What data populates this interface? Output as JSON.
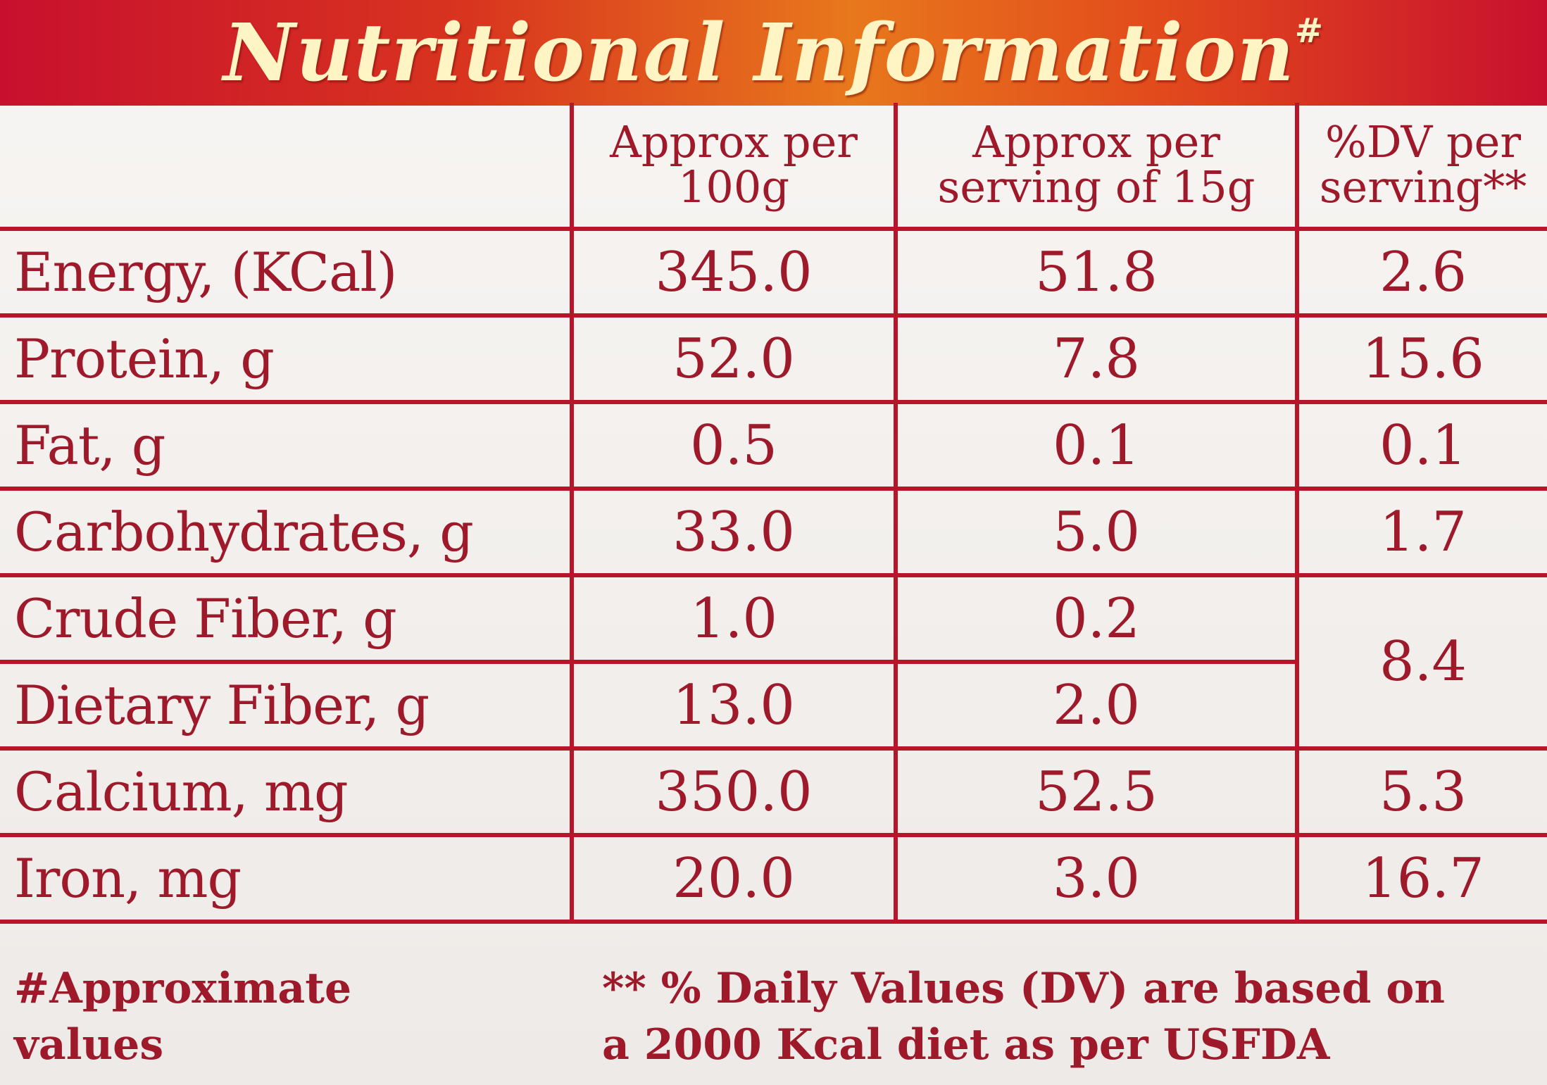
{
  "title": "Nutritional Information",
  "title_mark": "#",
  "colors": {
    "accent_red": "#b8142a",
    "text_red": "#9e1a2b",
    "banner_text": "#fff4c4"
  },
  "table": {
    "headers": [
      "",
      "Approx per 100g",
      "Approx per serving of 15g",
      "%DV per serving**"
    ],
    "rows": [
      {
        "name": "Energy, (KCal)",
        "per_100g": "345.0",
        "per_serving": "51.8",
        "dv": "2.6"
      },
      {
        "name": "Protein, g",
        "per_100g": "52.0",
        "per_serving": "7.8",
        "dv": "15.6"
      },
      {
        "name": "Fat, g",
        "per_100g": "0.5",
        "per_serving": "0.1",
        "dv": "0.1"
      },
      {
        "name": "Carbohydrates, g",
        "per_100g": "33.0",
        "per_serving": "5.0",
        "dv": "1.7"
      },
      {
        "name": "Crude Fiber, g",
        "per_100g": "1.0",
        "per_serving": "0.2",
        "dv": "8.4"
      },
      {
        "name": "Dietary Fiber, g",
        "per_100g": "13.0",
        "per_serving": "2.0"
      },
      {
        "name": "Calcium, mg",
        "per_100g": "350.0",
        "per_serving": "52.5",
        "dv": "5.3"
      },
      {
        "name": "Iron, mg",
        "per_100g": "20.0",
        "per_serving": "3.0",
        "dv": "16.7"
      }
    ]
  },
  "footnotes": {
    "approx": [
      "#Approximate",
      "values"
    ],
    "dv": [
      "** % Daily Values (DV) are based on",
      "a 2000 Kcal diet as per USFDA"
    ]
  }
}
